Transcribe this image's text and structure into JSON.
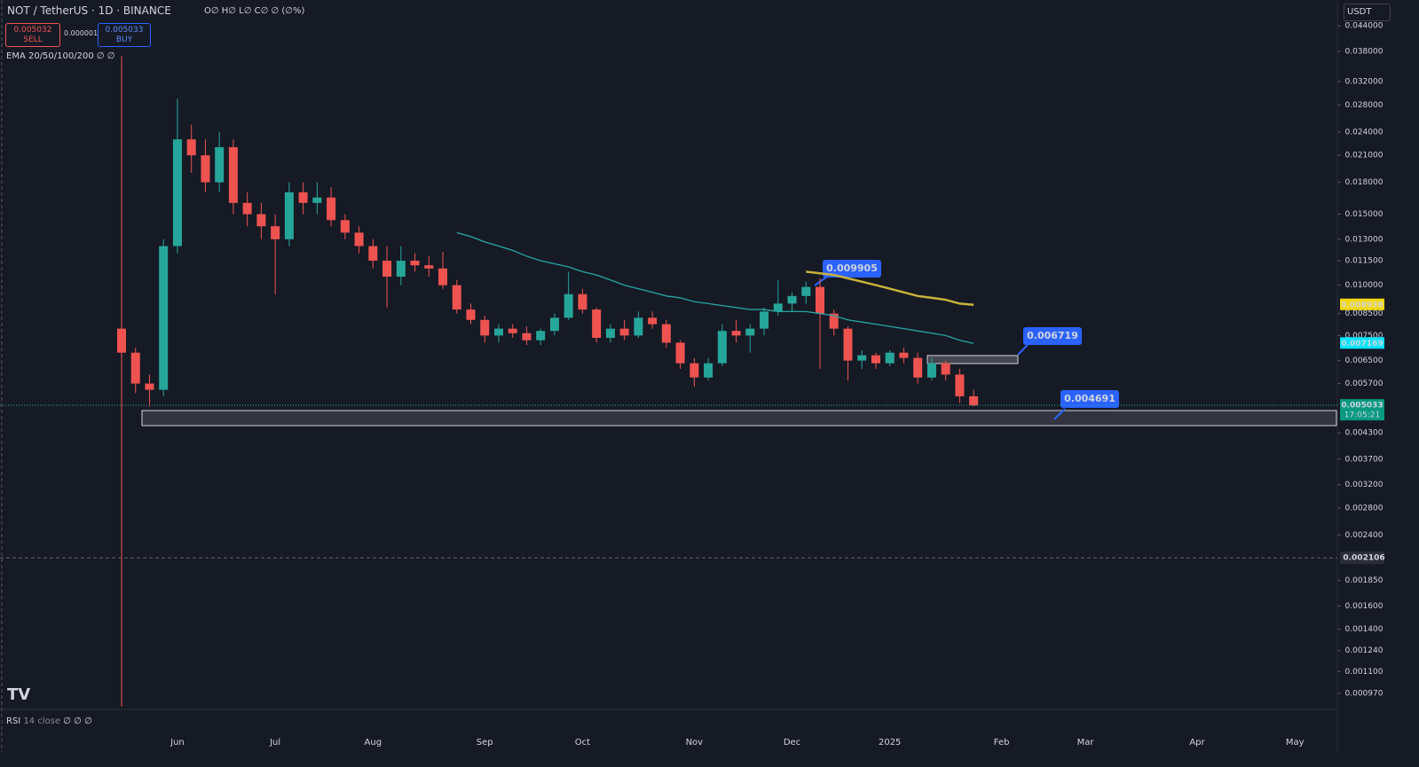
{
  "toolbar": {
    "symbol": "NOT / TetherUS · 1D · BINANCE",
    "ohlc": "O∅ H∅ L∅ C∅ ∅ (∅%)",
    "sell_price": "0.005032",
    "sell_label": "SELL",
    "spread": "0.000001",
    "buy_price": "0.005033",
    "buy_label": "BUY",
    "indicator": "EMA 20/50/100/200 ∅ ∅",
    "currency": "USDT",
    "rsi_name": "RSI",
    "rsi_params": "14 close",
    "rsi_values": "∅ ∅ ∅"
  },
  "chart_data": {
    "type": "candlestick",
    "log_scale": true,
    "up_color": "#26a69a",
    "down_color": "#ef5350",
    "ylim": [
      0.000886,
      0.051
    ],
    "yticks": [
      {
        "value": 0.044,
        "label": "0.044000"
      },
      {
        "value": 0.038,
        "label": "0.038000"
      },
      {
        "value": 0.032,
        "label": "0.032000"
      },
      {
        "value": 0.028,
        "label": "0.028000"
      },
      {
        "value": 0.024,
        "label": "0.024000"
      },
      {
        "value": 0.021,
        "label": "0.021000"
      },
      {
        "value": 0.018,
        "label": "0.018000"
      },
      {
        "value": 0.015,
        "label": "0.015000"
      },
      {
        "value": 0.013,
        "label": "0.013000"
      },
      {
        "value": 0.0115,
        "label": "0.011500"
      },
      {
        "value": 0.01,
        "label": "0.010000"
      },
      {
        "value": 0.0085,
        "label": "0.008500"
      },
      {
        "value": 0.0075,
        "label": "0.007500"
      },
      {
        "value": 0.0065,
        "label": "0.006500"
      },
      {
        "value": 0.0057,
        "label": "0.005700"
      },
      {
        "value": 0.0043,
        "label": "0.004300"
      },
      {
        "value": 0.0037,
        "label": "0.003700"
      },
      {
        "value": 0.0032,
        "label": "0.003200"
      },
      {
        "value": 0.0028,
        "label": "0.002800"
      },
      {
        "value": 0.0024,
        "label": "0.002400"
      },
      {
        "value": 0.00185,
        "label": "0.001850"
      },
      {
        "value": 0.0016,
        "label": "0.001600"
      },
      {
        "value": 0.0014,
        "label": "0.001400"
      },
      {
        "value": 0.00124,
        "label": "0.001240"
      },
      {
        "value": 0.0011,
        "label": "0.001100"
      },
      {
        "value": 0.00097,
        "label": "0.000970"
      }
    ],
    "categories": [
      null,
      null,
      null,
      null,
      "Jun",
      null,
      null,
      null,
      null,
      null,
      null,
      "Jul",
      null,
      null,
      null,
      null,
      null,
      null,
      "Aug",
      null,
      null,
      null,
      null,
      null,
      null,
      null,
      "Sep",
      null,
      null,
      null,
      null,
      null,
      null,
      "Oct",
      null,
      null,
      null,
      null,
      null,
      null,
      null,
      "Nov",
      null,
      null,
      null,
      null,
      null,
      null,
      "Dec",
      null,
      null,
      null,
      null,
      null,
      null,
      "2025",
      null,
      null,
      null,
      null,
      null,
      null,
      null,
      "Feb",
      null,
      null,
      null,
      null,
      null,
      "Mar",
      null,
      null,
      null,
      null,
      null,
      null,
      null,
      "Apr",
      null,
      null,
      null,
      null,
      null,
      null,
      "May",
      null,
      null
    ],
    "open": [
      0.0078,
      0.0068,
      0.0057,
      0.0055,
      0.0125,
      0.023,
      0.021,
      0.018,
      0.022,
      0.016,
      0.015,
      0.014,
      0.013,
      0.017,
      0.016,
      0.0165,
      0.0145,
      0.0135,
      0.0125,
      0.0115,
      0.0105,
      0.0115,
      0.0112,
      0.011,
      0.01,
      0.0087,
      0.0082,
      0.0075,
      0.0078,
      0.0076,
      0.0073,
      0.0077,
      0.0083,
      0.0095,
      0.0087,
      0.0074,
      0.0078,
      0.0075,
      0.0083,
      0.008,
      0.0072,
      0.0064,
      0.0059,
      0.0064,
      0.0077,
      0.0075,
      0.0078,
      0.0086,
      0.009,
      0.0094,
      0.0099,
      0.0085,
      0.0078,
      0.0065,
      0.0067,
      0.0064,
      0.0068,
      0.0066,
      0.0059,
      0.0064,
      0.006,
      0.0053,
      null,
      null,
      null,
      null,
      null,
      null,
      null,
      null,
      null,
      null,
      null,
      null,
      null,
      null,
      null,
      null,
      null,
      null,
      null,
      null,
      null,
      null,
      null,
      null,
      null
    ],
    "high": [
      0.037,
      0.007,
      0.006,
      0.013,
      0.029,
      0.025,
      0.023,
      0.024,
      0.023,
      0.017,
      0.016,
      0.015,
      0.018,
      0.018,
      0.018,
      0.0175,
      0.015,
      0.014,
      0.013,
      0.0125,
      0.0125,
      0.012,
      0.0118,
      0.0121,
      0.0103,
      0.009,
      0.0084,
      0.008,
      0.008,
      0.0079,
      0.0078,
      0.0085,
      0.0108,
      0.0098,
      0.0088,
      0.008,
      0.0082,
      0.0086,
      0.0086,
      0.0082,
      0.0073,
      0.0066,
      0.0066,
      0.008,
      0.0082,
      0.008,
      0.0088,
      0.0103,
      0.0096,
      0.0102,
      0.0104,
      0.0087,
      0.0079,
      0.0069,
      0.0068,
      0.0069,
      0.007,
      0.0068,
      0.0066,
      0.0065,
      0.0062,
      0.0055,
      null,
      null,
      null,
      null,
      null,
      null,
      null,
      null,
      null,
      null,
      null,
      null,
      null,
      null,
      null,
      null,
      null,
      null,
      null,
      null,
      null,
      null,
      null,
      null,
      null
    ],
    "low": [
      0.0009,
      0.0054,
      0.005,
      0.0053,
      0.012,
      0.019,
      0.017,
      0.017,
      0.015,
      0.014,
      0.013,
      0.0095,
      0.0125,
      0.015,
      0.015,
      0.014,
      0.013,
      0.012,
      0.011,
      0.0088,
      0.01,
      0.0108,
      0.0105,
      0.0098,
      0.0085,
      0.008,
      0.0072,
      0.0072,
      0.0074,
      0.0071,
      0.0071,
      0.0075,
      0.0082,
      0.0085,
      0.0072,
      0.0072,
      0.0073,
      0.0074,
      0.0078,
      0.007,
      0.0062,
      0.0056,
      0.0058,
      0.0063,
      0.0072,
      0.0068,
      0.0075,
      0.0084,
      0.0086,
      0.009,
      0.0062,
      0.0075,
      0.0058,
      0.0062,
      0.0062,
      0.0063,
      0.0064,
      0.0057,
      0.0058,
      0.0058,
      0.0051,
      0.005,
      null,
      null,
      null,
      null,
      null,
      null,
      null,
      null,
      null,
      null,
      null,
      null,
      null,
      null,
      null,
      null,
      null,
      null,
      null,
      null,
      null,
      null,
      null,
      null,
      null
    ],
    "close": [
      0.0068,
      0.0057,
      0.0055,
      0.0125,
      0.023,
      0.021,
      0.018,
      0.022,
      0.016,
      0.015,
      0.014,
      0.013,
      0.017,
      0.016,
      0.0165,
      0.0145,
      0.0135,
      0.0125,
      0.0115,
      0.0105,
      0.0115,
      0.0112,
      0.011,
      0.01,
      0.0087,
      0.0082,
      0.0075,
      0.0078,
      0.0076,
      0.0073,
      0.0077,
      0.0083,
      0.0095,
      0.0087,
      0.0074,
      0.0078,
      0.0075,
      0.0083,
      0.008,
      0.0072,
      0.0064,
      0.0059,
      0.0064,
      0.0077,
      0.0075,
      0.0078,
      0.0086,
      0.009,
      0.0094,
      0.0099,
      0.0085,
      0.0078,
      0.0065,
      0.0067,
      0.0064,
      0.0068,
      0.0066,
      0.0059,
      0.0064,
      0.006,
      0.0053,
      0.005033,
      null,
      null,
      null,
      null,
      null,
      null,
      null,
      null,
      null,
      null,
      null,
      null,
      null,
      null,
      null,
      null,
      null,
      null,
      null,
      null,
      null,
      null,
      null,
      null,
      null
    ],
    "ema_lines": [
      {
        "color": "#26a6a6",
        "values": [
          null,
          null,
          null,
          null,
          null,
          null,
          null,
          null,
          null,
          null,
          null,
          null,
          null,
          null,
          null,
          null,
          null,
          null,
          null,
          null,
          null,
          null,
          null,
          null,
          0.0135,
          0.0132,
          0.0128,
          0.0125,
          0.0122,
          0.0118,
          0.0115,
          0.0113,
          0.0111,
          0.0108,
          0.0106,
          0.0103,
          0.01,
          0.0098,
          0.0096,
          0.0094,
          0.0093,
          0.0091,
          0.009,
          0.0089,
          0.0088,
          0.0087,
          0.0087,
          0.0086,
          0.0086,
          0.0086,
          0.0085,
          0.0084,
          0.0082,
          0.0081,
          0.008,
          0.0079,
          0.0078,
          0.0077,
          0.0076,
          0.0075,
          0.0073,
          0.007169,
          null,
          null,
          null,
          null,
          null,
          null,
          null,
          null,
          null,
          null,
          null,
          null,
          null,
          null,
          null,
          null,
          null,
          null,
          null,
          null,
          null,
          null,
          null,
          null,
          null
        ]
      },
      {
        "color": "#c9b23a",
        "values": [
          null,
          null,
          null,
          null,
          null,
          null,
          null,
          null,
          null,
          null,
          null,
          null,
          null,
          null,
          null,
          null,
          null,
          null,
          null,
          null,
          null,
          null,
          null,
          null,
          null,
          null,
          null,
          null,
          null,
          null,
          null,
          null,
          null,
          null,
          null,
          null,
          null,
          null,
          null,
          null,
          null,
          null,
          null,
          null,
          null,
          null,
          null,
          null,
          null,
          0.0108,
          0.0107,
          0.0106,
          0.0104,
          0.0102,
          0.01,
          0.0098,
          0.0096,
          0.0094,
          0.0093,
          0.0092,
          0.009,
          0.008938,
          null,
          null,
          null,
          null,
          null,
          null,
          null,
          null,
          null,
          null,
          null,
          null,
          null,
          null,
          null,
          null,
          null,
          null,
          null,
          null,
          null,
          null,
          null,
          null,
          null
        ]
      }
    ],
    "countdown": "17:05:21",
    "crosshair_price": 0.002106,
    "callouts": [
      "0.009905",
      "0.006719",
      "0.004691"
    ]
  }
}
